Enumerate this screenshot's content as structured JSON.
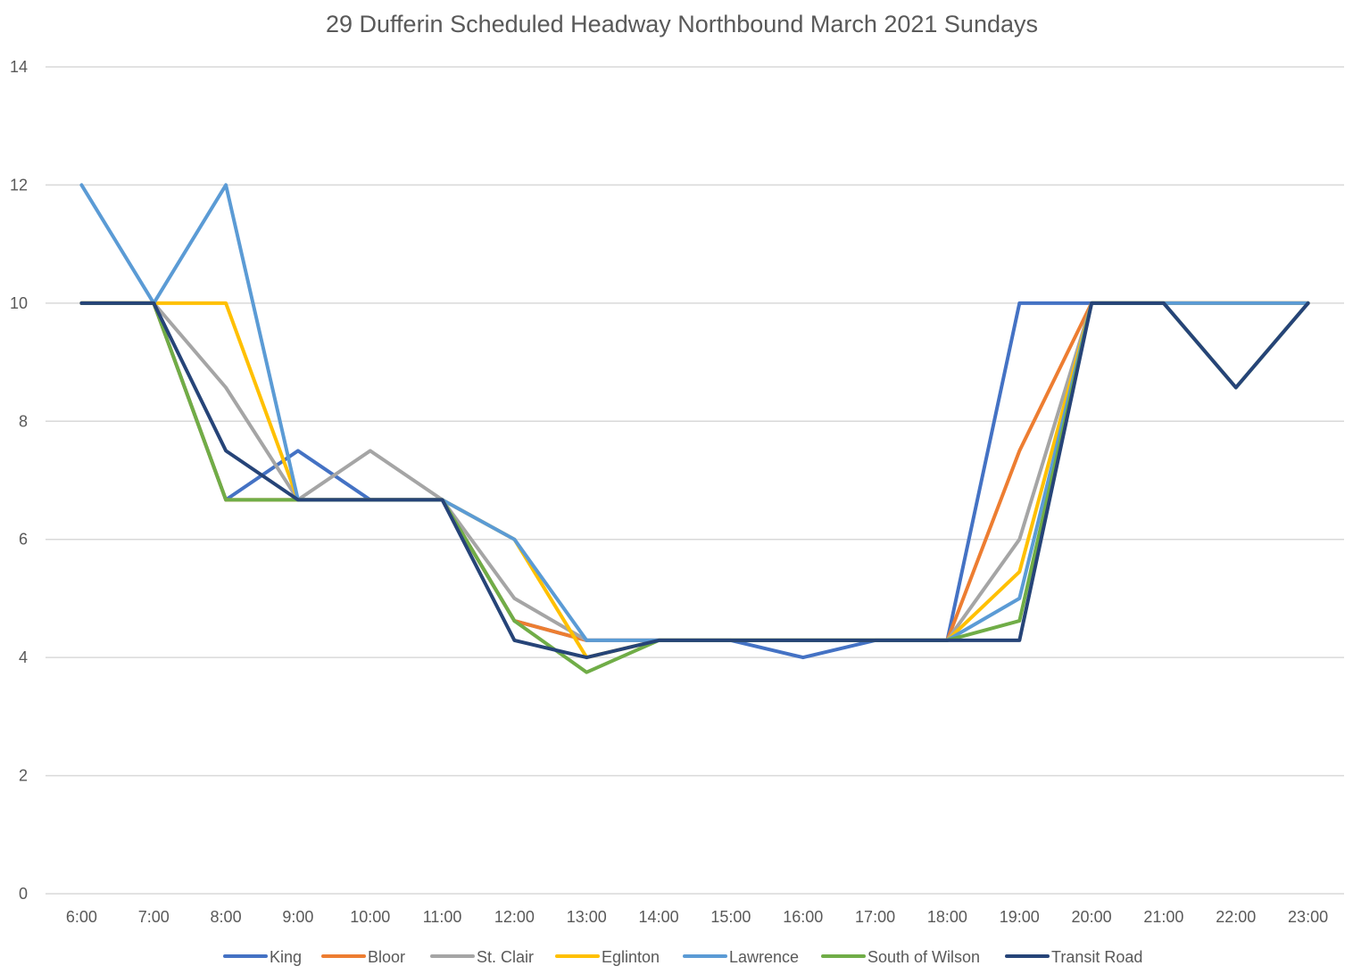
{
  "chart_data": {
    "type": "line",
    "title": "29 Dufferin  Scheduled Headway Northbound March 2021 Sundays",
    "xlabel": "",
    "ylabel": "",
    "ylim": [
      0,
      14
    ],
    "yticks": [
      0,
      2,
      4,
      6,
      8,
      10,
      12,
      14
    ],
    "grid": true,
    "legend_position": "bottom",
    "categories": [
      "6:00",
      "7:00",
      "8:00",
      "9:00",
      "10:00",
      "11:00",
      "12:00",
      "13:00",
      "14:00",
      "15:00",
      "16:00",
      "17:00",
      "18:00",
      "19:00",
      "20:00",
      "21:00",
      "22:00",
      "23:00"
    ],
    "series": [
      {
        "name": "King",
        "color": "#4472C4",
        "values": [
          10,
          10,
          6.67,
          7.5,
          6.67,
          6.67,
          4.62,
          4.29,
          4.29,
          4.29,
          4,
          4.29,
          4.29,
          10,
          10,
          10,
          10,
          10
        ]
      },
      {
        "name": "Bloor",
        "color": "#ED7D31",
        "values": [
          10,
          10,
          6.67,
          6.67,
          6.67,
          6.67,
          4.62,
          4.29,
          4.29,
          4.29,
          4.29,
          4.29,
          4.29,
          7.5,
          10,
          10,
          10,
          10
        ]
      },
      {
        "name": "St. Clair",
        "color": "#A5A5A5",
        "values": [
          10,
          10,
          8.57,
          6.67,
          7.5,
          6.67,
          5,
          4.29,
          4.29,
          4.29,
          4.29,
          4.29,
          4.29,
          6,
          10,
          10,
          10,
          10
        ]
      },
      {
        "name": "Eglinton",
        "color": "#FFC000",
        "values": [
          10,
          10,
          10,
          6.67,
          6.67,
          6.67,
          6,
          4,
          4.29,
          4.29,
          4.29,
          4.29,
          4.29,
          5.45,
          10,
          10,
          10,
          10
        ]
      },
      {
        "name": "Lawrence",
        "color": "#5B9BD5",
        "values": [
          12,
          10,
          12,
          6.67,
          6.67,
          6.67,
          6,
          4.29,
          4.29,
          4.29,
          4.29,
          4.29,
          4.29,
          5,
          10,
          10,
          10,
          10
        ]
      },
      {
        "name": "South of Wilson",
        "color": "#70AD47",
        "values": [
          10,
          10,
          6.67,
          6.67,
          6.67,
          6.67,
          4.62,
          3.75,
          4.29,
          4.29,
          4.29,
          4.29,
          4.29,
          4.62,
          10,
          10,
          8.57,
          10
        ]
      },
      {
        "name": "Transit Road",
        "color": "#264478",
        "values": [
          10,
          10,
          7.5,
          6.67,
          6.67,
          6.67,
          4.29,
          4,
          4.29,
          4.29,
          4.29,
          4.29,
          4.29,
          4.29,
          10,
          10,
          8.57,
          10
        ]
      }
    ]
  }
}
